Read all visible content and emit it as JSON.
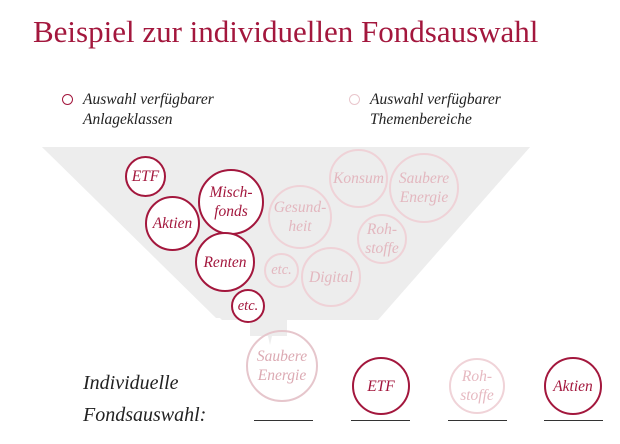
{
  "title": "Beispiel zur individuellen Fondsauswahl",
  "legend": {
    "classes": "Auswahl verfügbarer\nAnlageklassen",
    "themes": "Auswahl verfügbarer\nThemenbereiche"
  },
  "asset_classes": {
    "etf": "ETF",
    "mischfonds": "Misch-\nfonds",
    "aktien": "Aktien",
    "renten": "Renten",
    "etc": "etc."
  },
  "themes": {
    "konsum": "Konsum",
    "saubere_energie": "Saubere\nEnergie",
    "gesundheit": "Gesund-\nheit",
    "rohstoffe": "Roh-\nstoffe",
    "etc": "etc.",
    "digital": "Digital"
  },
  "output_bubble": "Saubere\nEnergie",
  "footer": {
    "line1": "Individuelle",
    "line2": "Fondsauswahl:"
  },
  "selection": {
    "slot2": "ETF",
    "slot3": "Roh-\nstoffe",
    "slot4": "Aktien"
  }
}
